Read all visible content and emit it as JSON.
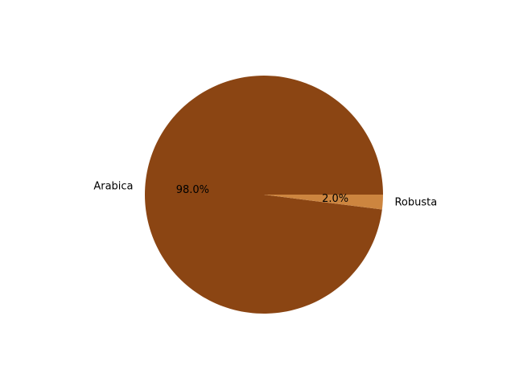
{
  "chart_data": {
    "type": "pie",
    "title": "",
    "slices": [
      {
        "label": "Arabica",
        "value": 98.0,
        "pct_label": "98.0%",
        "color": "#8b4513"
      },
      {
        "label": "Robusta",
        "value": 2.0,
        "pct_label": "2.0%",
        "color": "#cd853f"
      }
    ],
    "start_angle": "0° (3 o'clock), counter-clockwise",
    "legend": "none"
  }
}
